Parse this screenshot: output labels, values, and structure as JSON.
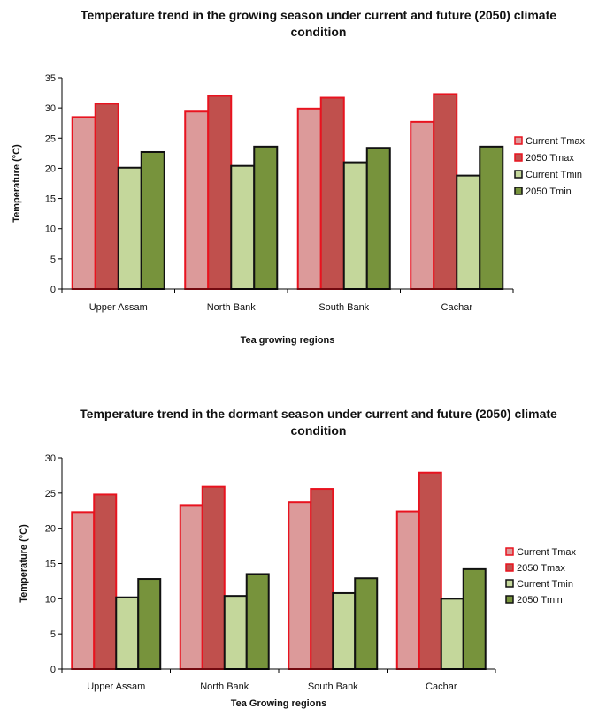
{
  "colors": {
    "current_tmax_fill": "#dc9a9a",
    "tmax_2050_fill": "#c0504d",
    "current_tmin_fill": "#c4d79b",
    "tmin_2050_fill": "#77933c",
    "tmax_outline": "#e8131f",
    "tmin_outline": "#111111"
  },
  "chart_data": [
    {
      "type": "bar",
      "title": "Temperature trend in the growing season under current and future (2050) climate condition",
      "xlabel": "Tea growing regions",
      "ylabel": "Temperature (°C)",
      "ylim": [
        0,
        35
      ],
      "yticks": [
        0,
        5,
        10,
        15,
        20,
        25,
        30,
        35
      ],
      "categories": [
        "Upper Assam",
        "North Bank",
        "South Bank",
        "Cachar"
      ],
      "series": [
        {
          "name": "Current Tmax",
          "values": [
            28.5,
            29.4,
            29.9,
            27.7
          ]
        },
        {
          "name": "2050 Tmax",
          "values": [
            30.7,
            32.0,
            31.7,
            32.3
          ]
        },
        {
          "name": "Current Tmin",
          "values": [
            20.1,
            20.4,
            21.0,
            18.8
          ]
        },
        {
          "name": "2050 Tmin",
          "values": [
            22.7,
            23.6,
            23.4,
            23.6
          ]
        }
      ],
      "legend": "right",
      "grid": false
    },
    {
      "type": "bar",
      "title": "Temperature trend in the dormant season under current and future (2050) climate condition",
      "xlabel": "Tea Growing regions",
      "ylabel": "Temperature (°C)",
      "ylim": [
        0,
        30
      ],
      "yticks": [
        0,
        5,
        10,
        15,
        20,
        25,
        30
      ],
      "categories": [
        "Upper Assam",
        "North Bank",
        "South Bank",
        "Cachar"
      ],
      "series": [
        {
          "name": "Current Tmax",
          "values": [
            22.3,
            23.3,
            23.7,
            22.4
          ]
        },
        {
          "name": "2050 Tmax",
          "values": [
            24.8,
            25.9,
            25.6,
            27.9
          ]
        },
        {
          "name": "Current Tmin",
          "values": [
            10.2,
            10.4,
            10.8,
            10.0
          ]
        },
        {
          "name": "2050 Tmin",
          "values": [
            12.8,
            13.5,
            12.9,
            14.2
          ]
        }
      ],
      "legend": "right",
      "grid": false
    }
  ]
}
